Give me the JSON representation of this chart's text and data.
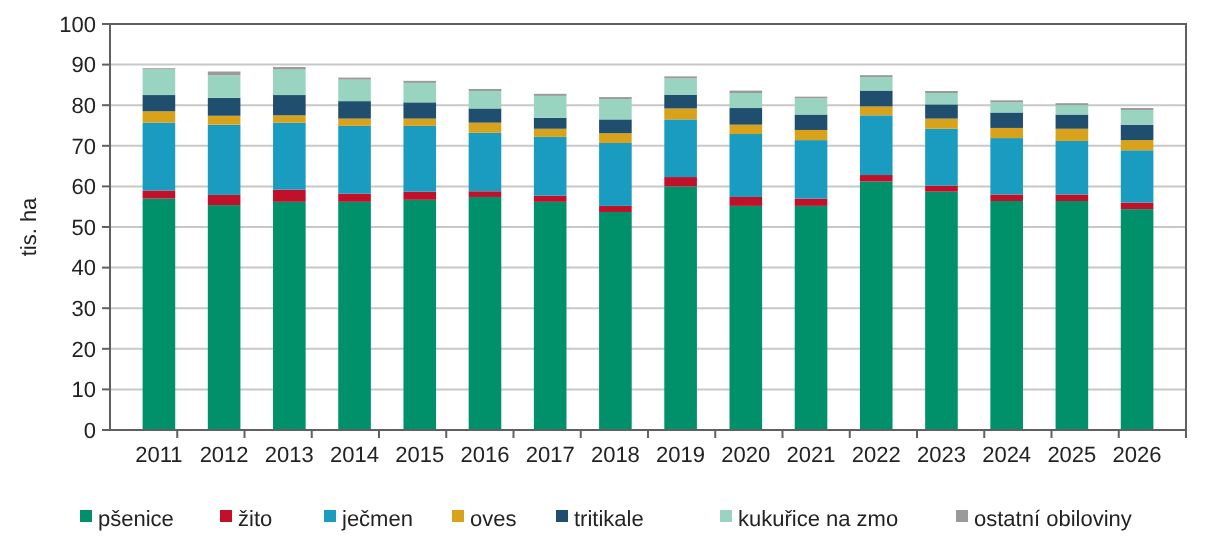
{
  "chart_data": {
    "type": "bar",
    "stacked": true,
    "ylabel": "tis. ha",
    "categories": [
      "2011",
      "2012",
      "2013",
      "2014",
      "2015",
      "2016",
      "2017",
      "2018",
      "2019",
      "2020",
      "2021",
      "2022",
      "2023",
      "2024",
      "2025",
      "2026"
    ],
    "series": [
      {
        "name": "pšenice",
        "color": "#00906a",
        "values": [
          57,
          55.4,
          56.2,
          56.2,
          56.7,
          57.4,
          56.2,
          53.7,
          60,
          55.2,
          55.2,
          61.2,
          58.7,
          56.4,
          56.4,
          54.4
        ]
      },
      {
        "name": "žito",
        "color": "#c0102a",
        "values": [
          2,
          2.5,
          3,
          2,
          2,
          1.4,
          1.5,
          1.5,
          2.3,
          2.2,
          1.8,
          1.6,
          1.5,
          1.6,
          1.6,
          1.6
        ]
      },
      {
        "name": "ječmen",
        "color": "#1a9bc0",
        "values": [
          16.7,
          17.3,
          16.5,
          16.7,
          16.2,
          14.4,
          14.5,
          15.5,
          14.2,
          15.5,
          14.4,
          14.7,
          14,
          13.9,
          13.2,
          12.9
        ]
      },
      {
        "name": "oves",
        "color": "#d9a21b",
        "values": [
          2.8,
          2.2,
          1.8,
          1.8,
          1.8,
          2.5,
          2,
          2.4,
          2.7,
          2.3,
          2.5,
          2.2,
          2.5,
          2.5,
          3,
          2.5
        ]
      },
      {
        "name": "tritikale",
        "color": "#1f4e6e",
        "values": [
          4,
          4.4,
          5,
          4.3,
          4,
          3.5,
          2.7,
          3.4,
          3.4,
          4.1,
          3.8,
          3.9,
          3.5,
          3.8,
          3.5,
          3.8
        ]
      },
      {
        "name": "kukuřice na zmo",
        "color": "#98d4c0",
        "values": [
          6.3,
          5.6,
          6.3,
          5.3,
          4.8,
          4.3,
          5.4,
          5,
          4,
          3.7,
          4,
          3.3,
          2.8,
          2.5,
          2.3,
          3.6
        ]
      },
      {
        "name": "ostatní obiloviny",
        "color": "#9a9a9a",
        "values": [
          0.3,
          0.9,
          0.6,
          0.5,
          0.5,
          0.5,
          0.5,
          0.5,
          0.5,
          0.6,
          0.4,
          0.5,
          0.5,
          0.5,
          0.5,
          0.5
        ]
      }
    ],
    "ylim": [
      0,
      100
    ],
    "yticks": [
      0,
      10,
      20,
      30,
      40,
      50,
      60,
      70,
      80,
      90,
      100
    ],
    "grid": "y",
    "legend": "bottom"
  }
}
